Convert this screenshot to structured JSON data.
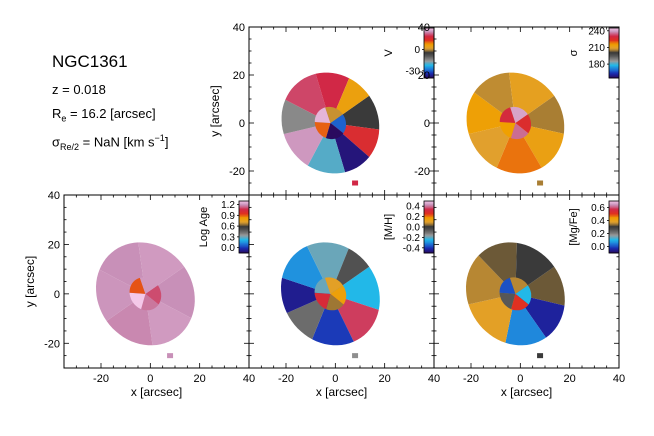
{
  "galaxy": {
    "name": "NGC1361",
    "redshift_label": "z = 0.018",
    "re_prefix": "R",
    "re_sub": "e",
    "re_value": " = 16.2 [arcsec]",
    "sigma_prefix": "σ",
    "sigma_sub": "Re/2",
    "sigma_value": " = NaN [km s",
    "sigma_sup": "−1",
    "sigma_end": "]"
  },
  "chart_data": [
    {
      "type": "heatmap",
      "panel": "velocity",
      "xlim": [
        -35,
        40
      ],
      "ylim": [
        -30,
        40
      ],
      "xticks": [
        -20,
        0,
        20,
        40
      ],
      "yticks": [
        -20,
        0,
        20,
        40
      ],
      "xlabel": "",
      "ylabel": "y [arcsec]",
      "colorbar": {
        "label": "V",
        "ticks": [
          -30,
          0
        ],
        "range": [
          -40,
          30
        ],
        "cmap": "rainbow"
      },
      "map": {
        "center": [
          -2,
          0
        ],
        "radii": [
          12,
          16
        ],
        "angle_deg": -35,
        "bins": [
          {
            "a0": 0,
            "a1": 40,
            "v": -5
          },
          {
            "a0": 40,
            "a1": 75,
            "v": 15
          },
          {
            "a0": 75,
            "a1": 110,
            "v": -38
          },
          {
            "a0": 110,
            "a1": 155,
            "v": -20
          },
          {
            "a0": 155,
            "a1": 200,
            "v": 25
          },
          {
            "a0": 200,
            "a1": 240,
            "v": -15
          },
          {
            "a0": 240,
            "a1": 290,
            "v": 20
          },
          {
            "a0": 290,
            "a1": 330,
            "v": 18
          },
          {
            "a0": 330,
            "a1": 360,
            "v": 5
          }
        ],
        "core": [
          -30,
          -40,
          10,
          28,
          0
        ],
        "knot": [
          8,
          -25,
          18
        ]
      }
    },
    {
      "type": "heatmap",
      "panel": "sigma",
      "xlim": [
        -35,
        40
      ],
      "ylim": [
        -30,
        40
      ],
      "xticks": [
        -20,
        0,
        20,
        40
      ],
      "yticks": [
        -20,
        0,
        20,
        40
      ],
      "xlabel": "",
      "ylabel": "",
      "colorbar": {
        "label": "σ",
        "ticks": [
          180,
          210,
          240
        ],
        "range": [
          155,
          245
        ],
        "cmap": "rainbow"
      },
      "map": {
        "center": [
          -2,
          0
        ],
        "radii": [
          12,
          16
        ],
        "angle_deg": -35,
        "bins": [
          {
            "a0": 0,
            "a1": 45,
            "v": 205
          },
          {
            "a0": 45,
            "a1": 95,
            "v": 212
          },
          {
            "a0": 95,
            "a1": 150,
            "v": 218
          },
          {
            "a0": 150,
            "a1": 200,
            "v": 208
          },
          {
            "a0": 200,
            "a1": 250,
            "v": 214
          },
          {
            "a0": 250,
            "a1": 300,
            "v": 206
          },
          {
            "a0": 300,
            "a1": 360,
            "v": 210
          }
        ],
        "core": [
          225,
          235,
          215,
          228,
          240
        ],
        "knot": [
          8,
          -25,
          205
        ]
      }
    },
    {
      "type": "heatmap",
      "panel": "log_age",
      "xlim": [
        -35,
        40
      ],
      "ylim": [
        -30,
        40
      ],
      "xticks": [
        -20,
        0,
        20,
        40
      ],
      "yticks": [
        -20,
        0,
        20,
        40
      ],
      "xlabel": "x [arcsec]",
      "ylabel": "y [arcsec]",
      "colorbar": {
        "label": "Log Age",
        "ticks": [
          0.0,
          0.3,
          0.6,
          0.9,
          1.2
        ],
        "range": [
          -0.15,
          1.3
        ],
        "cmap": "rainbow"
      },
      "map": {
        "center": [
          -2,
          0
        ],
        "radii": [
          12,
          16
        ],
        "angle_deg": -35,
        "bins": [
          {
            "a0": 0,
            "a1": 60,
            "v": 1.18
          },
          {
            "a0": 60,
            "a1": 120,
            "v": 1.2
          },
          {
            "a0": 120,
            "a1": 180,
            "v": 1.17
          },
          {
            "a0": 180,
            "a1": 240,
            "v": 1.19
          },
          {
            "a0": 240,
            "a1": 300,
            "v": 1.18
          },
          {
            "a0": 300,
            "a1": 360,
            "v": 1.2
          }
        ],
        "core": [
          1.1,
          1.15,
          1.3,
          0.9,
          1.2
        ],
        "knot": [
          8,
          -25,
          1.18
        ]
      }
    },
    {
      "type": "heatmap",
      "panel": "metallicity",
      "xlim": [
        -35,
        40
      ],
      "ylim": [
        -30,
        40
      ],
      "xticks": [
        -20,
        0,
        20,
        40
      ],
      "yticks": [],
      "xlabel": "x [arcsec]",
      "ylabel": "",
      "colorbar": {
        "label": "[M/H]",
        "ticks": [
          -0.4,
          -0.2,
          0.0,
          0.2,
          0.4
        ],
        "range": [
          -0.5,
          0.5
        ],
        "cmap": "rainbow"
      },
      "map": {
        "center": [
          -2,
          0
        ],
        "radii": [
          12,
          16
        ],
        "angle_deg": -35,
        "bins": [
          {
            "a0": 0,
            "a1": 50,
            "v": -0.25
          },
          {
            "a0": 50,
            "a1": 100,
            "v": 0.35
          },
          {
            "a0": 100,
            "a1": 150,
            "v": -0.4
          },
          {
            "a0": 150,
            "a1": 190,
            "v": -0.1
          },
          {
            "a0": 190,
            "a1": 230,
            "v": -0.45
          },
          {
            "a0": 230,
            "a1": 280,
            "v": -0.3
          },
          {
            "a0": 280,
            "a1": 330,
            "v": -0.2
          },
          {
            "a0": 330,
            "a1": 360,
            "v": -0.05
          }
        ],
        "core": [
          0.15,
          0.05,
          0.3,
          -0.2,
          0.1
        ],
        "knot": [
          8,
          -25,
          -0.15
        ]
      }
    },
    {
      "type": "heatmap",
      "panel": "alpha",
      "xlim": [
        -35,
        40
      ],
      "ylim": [
        -30,
        40
      ],
      "xticks": [
        -20,
        0,
        20,
        40
      ],
      "yticks": [],
      "xlabel": "x [arcsec]",
      "ylabel": "",
      "colorbar": {
        "label": "[Mg/Fe]",
        "ticks": [
          0.0,
          0.2,
          0.4,
          0.6
        ],
        "range": [
          -0.1,
          0.7
        ],
        "cmap": "rainbow"
      },
      "map": {
        "center": [
          -2,
          0
        ],
        "radii": [
          12,
          16
        ],
        "angle_deg": -35,
        "bins": [
          {
            "a0": 0,
            "a1": 45,
            "v": 0.32
          },
          {
            "a0": 45,
            "a1": 90,
            "v": -0.05
          },
          {
            "a0": 90,
            "a1": 140,
            "v": 0.05
          },
          {
            "a0": 140,
            "a1": 200,
            "v": 0.38
          },
          {
            "a0": 200,
            "a1": 260,
            "v": 0.35
          },
          {
            "a0": 260,
            "a1": 310,
            "v": 0.32
          },
          {
            "a0": 310,
            "a1": 360,
            "v": 0.3
          }
        ],
        "core": [
          0.1,
          0.5,
          0.25,
          0.0,
          0.35
        ],
        "knot": [
          8,
          -25,
          0.3
        ]
      }
    }
  ]
}
